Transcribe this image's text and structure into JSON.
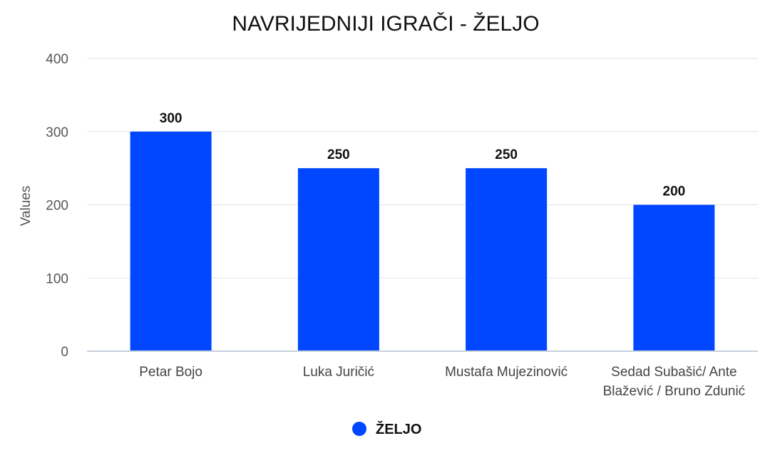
{
  "chart_data": {
    "type": "bar",
    "title": "NAVRIJEDNIJI IGRAČI - ŽELJO",
    "xlabel": "",
    "ylabel": "Values",
    "ylim": [
      0,
      400
    ],
    "yticks": [
      0,
      100,
      200,
      300,
      400
    ],
    "grid": true,
    "legend_position": "bottom",
    "categories": [
      [
        "Petar Bojo"
      ],
      [
        "Luka Juričić"
      ],
      [
        "Mustafa Mujezinović"
      ],
      [
        "Sedad Subašić/ Ante",
        "Blažević / Bruno Zdunić"
      ]
    ],
    "series": [
      {
        "name": "ŽELJO",
        "color": "#0047FF",
        "values": [
          300,
          250,
          250,
          200
        ],
        "data_labels": [
          "300",
          "250",
          "250",
          "200"
        ]
      }
    ]
  }
}
